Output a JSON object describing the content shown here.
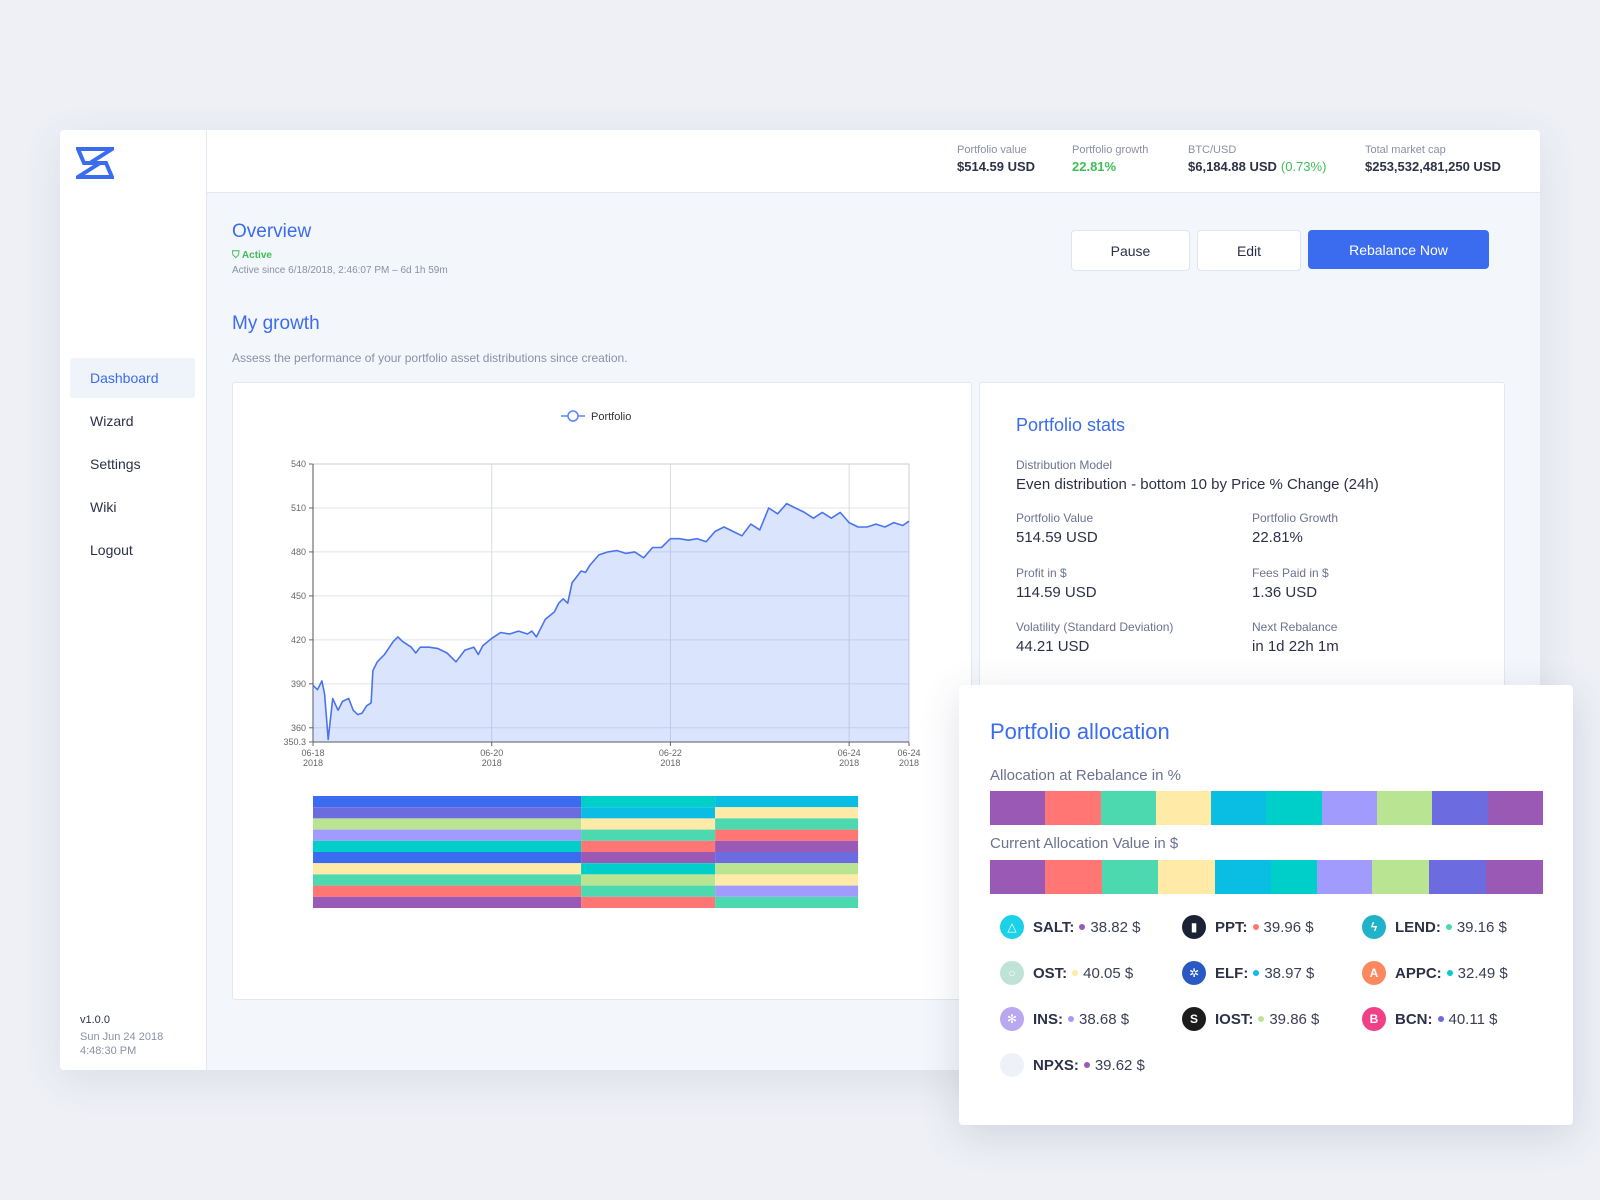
{
  "brand": {
    "accent": "#3b6cf0",
    "positive": "#3fbf55"
  },
  "sidebar": {
    "items": [
      {
        "label": "Dashboard",
        "active": true
      },
      {
        "label": "Wizard"
      },
      {
        "label": "Settings"
      },
      {
        "label": "Wiki"
      },
      {
        "label": "Logout"
      }
    ],
    "version": "v1.0.0",
    "date": "Sun Jun 24 2018",
    "time": "4:48:30 PM"
  },
  "topbar": {
    "portfolio_value_label": "Portfolio value",
    "portfolio_value": "$514.59 USD",
    "portfolio_growth_label": "Portfolio growth",
    "portfolio_growth": "22.81%",
    "btc_label": "BTC/USD",
    "btc_value": "$6,184.88 USD",
    "btc_change": "(0.73%)",
    "market_cap_label": "Total market cap",
    "market_cap": "$253,532,481,250 USD"
  },
  "overview": {
    "title": "Overview",
    "status": "Active",
    "status_sub": "Active since 6/18/2018, 2:46:07 PM – 6d 1h 59m",
    "pause_label": "Pause",
    "edit_label": "Edit",
    "rebalance_label": "Rebalance Now"
  },
  "growth": {
    "title": "My growth",
    "description": "Assess the performance of your portfolio asset distributions since creation."
  },
  "chart_data": {
    "type": "area",
    "title": "",
    "legend": [
      "Portfolio"
    ],
    "xlabel": "",
    "ylabel": "",
    "ylim": [
      350.3,
      540
    ],
    "yticks": [
      "540",
      "510",
      "480",
      "450",
      "420",
      "390",
      "360",
      "350.3"
    ],
    "yticks_values": [
      540,
      510,
      480,
      450,
      420,
      390,
      360,
      350.3
    ],
    "xticks": [
      {
        "x": 0,
        "line1": "06-18",
        "line2": "2018"
      },
      {
        "x": 2,
        "line1": "06-20",
        "line2": "2018"
      },
      {
        "x": 4,
        "line1": "06-22",
        "line2": "2018"
      },
      {
        "x": 6,
        "line1": "06-24",
        "line2": "2018"
      },
      {
        "x": 6.67,
        "line1": "06-24",
        "line2": "2018"
      }
    ],
    "x_range": [
      0,
      6.67
    ],
    "series": [
      {
        "name": "Portfolio",
        "x": [
          0,
          0.05,
          0.1,
          0.13,
          0.17,
          0.22,
          0.28,
          0.33,
          0.4,
          0.45,
          0.5,
          0.55,
          0.6,
          0.65,
          0.67,
          0.72,
          0.8,
          0.9,
          0.95,
          1.0,
          1.1,
          1.15,
          1.2,
          1.3,
          1.4,
          1.5,
          1.6,
          1.7,
          1.8,
          1.85,
          1.9,
          2.0,
          2.1,
          2.2,
          2.3,
          2.4,
          2.45,
          2.5,
          2.6,
          2.7,
          2.75,
          2.8,
          2.85,
          2.9,
          3.0,
          3.05,
          3.1,
          3.2,
          3.3,
          3.4,
          3.5,
          3.6,
          3.7,
          3.8,
          3.9,
          4.0,
          4.1,
          4.2,
          4.3,
          4.4,
          4.5,
          4.6,
          4.7,
          4.8,
          4.9,
          5.0,
          5.1,
          5.2,
          5.3,
          5.4,
          5.5,
          5.6,
          5.7,
          5.8,
          5.9,
          6.0,
          6.1,
          6.2,
          6.3,
          6.4,
          6.5,
          6.6,
          6.67
        ],
        "y": [
          389,
          386,
          392,
          383,
          352,
          380,
          372,
          378,
          380,
          372,
          369,
          370,
          375,
          377,
          399,
          405,
          410,
          419,
          422,
          419,
          415,
          411,
          415,
          415,
          414,
          411,
          405,
          413,
          415,
          410,
          416,
          421,
          425,
          424,
          426,
          424,
          426,
          422,
          434,
          439,
          445,
          448,
          445,
          459,
          467,
          466,
          471,
          478,
          480,
          481,
          479,
          480,
          476,
          483,
          483,
          489,
          489,
          488,
          489,
          487,
          494,
          497,
          494,
          491,
          499,
          495,
          510,
          506,
          513,
          510,
          507,
          503,
          507,
          503,
          507,
          500,
          497,
          497,
          499,
          497,
          500,
          498,
          501
        ]
      }
    ],
    "allocation_strips": {
      "segments_x": [
        0,
        3,
        4.5,
        6.1
      ],
      "columns": [
        [
          "#3b6cf0",
          "#6c6ce0",
          "#b9e592",
          "#a29bfe",
          "#00cec9",
          "#3b6cf0",
          "#ffeaa7",
          "#4dd9b0",
          "#ff7675",
          "#9b59b6"
        ],
        [
          "#00cec9",
          "#0abde3",
          "#ffeaa7",
          "#4dd9b0",
          "#ff7675",
          "#9b59b6",
          "#00cec9",
          "#b9e592",
          "#4dd9b0",
          "#ff7675"
        ],
        [
          "#0abde3",
          "#ffeaa7",
          "#4dd9b0",
          "#ff7675",
          "#9b59b6",
          "#6c6ce0",
          "#b9e592",
          "#ffeaa7",
          "#a29bfe",
          "#4dd9b0"
        ]
      ]
    }
  },
  "stats": {
    "title": "Portfolio stats",
    "model_label": "Distribution Model",
    "model_value": "Even distribution - bottom 10 by Price % Change (24h)",
    "value_label": "Portfolio Value",
    "value": "514.59 USD",
    "growth_label": "Portfolio Growth",
    "growth": "22.81%",
    "profit_label": "Profit in $",
    "profit": "114.59 USD",
    "fees_label": "Fees Paid in $",
    "fees": "1.36 USD",
    "volatility_label": "Volatility (Standard Deviation)",
    "volatility": "44.21 USD",
    "next_label": "Next Rebalance",
    "next": "in 1d 22h 1m"
  },
  "allocation": {
    "title": "Portfolio allocation",
    "rebalance_label": "Allocation at Rebalance in %",
    "current_label": "Current Allocation Value in $",
    "rebalance_segments": [
      {
        "color": "#9b59b6",
        "value": 10
      },
      {
        "color": "#ff7675",
        "value": 10
      },
      {
        "color": "#4dd9b0",
        "value": 10
      },
      {
        "color": "#ffeaa7",
        "value": 10
      },
      {
        "color": "#0abde3",
        "value": 10
      },
      {
        "color": "#00cec9",
        "value": 10
      },
      {
        "color": "#a29bfe",
        "value": 10
      },
      {
        "color": "#b9e592",
        "value": 10
      },
      {
        "color": "#6c6ce0",
        "value": 10
      },
      {
        "color": "#9b59b6",
        "value": 10
      }
    ],
    "current_segments": [
      {
        "color": "#9b59b6",
        "value": 38.82
      },
      {
        "color": "#ff7675",
        "value": 39.96
      },
      {
        "color": "#4dd9b0",
        "value": 39.16
      },
      {
        "color": "#ffeaa7",
        "value": 40.05
      },
      {
        "color": "#0abde3",
        "value": 38.97
      },
      {
        "color": "#00cec9",
        "value": 32.49
      },
      {
        "color": "#a29bfe",
        "value": 38.68
      },
      {
        "color": "#b9e592",
        "value": 39.86
      },
      {
        "color": "#6c6ce0",
        "value": 40.11
      },
      {
        "color": "#9b59b6",
        "value": 39.62
      }
    ],
    "coins": [
      {
        "name": "SALT:",
        "value": "38.82 $",
        "dot": "#9b59b6",
        "icon": "salt-icon",
        "icon_color": "#1bd1e8",
        "glyph": "△"
      },
      {
        "name": "PPT:",
        "value": "39.96 $",
        "dot": "#ff7675",
        "icon": "ppt-icon",
        "icon_color": "#1c2236",
        "glyph": "▮"
      },
      {
        "name": "LEND:",
        "value": "39.16 $",
        "dot": "#4dd9b0",
        "icon": "lend-icon",
        "icon_color": "#20b2c8",
        "glyph": "ϟ"
      },
      {
        "name": "OST:",
        "value": "40.05 $",
        "dot": "#ffeaa7",
        "icon": "ost-icon",
        "icon_color": "#bfe3d6",
        "glyph": "○"
      },
      {
        "name": "ELF:",
        "value": "38.97 $",
        "dot": "#0abde3",
        "icon": "elf-icon",
        "icon_color": "#2b59c3",
        "glyph": "✲"
      },
      {
        "name": "APPC:",
        "value": "32.49 $",
        "dot": "#00cec9",
        "icon": "appc-icon",
        "icon_color": "#fd875e",
        "glyph": "A"
      },
      {
        "name": "INS:",
        "value": "38.68 $",
        "dot": "#a29bfe",
        "icon": "ins-icon",
        "icon_color": "#b9a8f0",
        "glyph": "✻"
      },
      {
        "name": "IOST:",
        "value": "39.86 $",
        "dot": "#b9e592",
        "icon": "iost-icon",
        "icon_color": "#1c1c1c",
        "glyph": "S"
      },
      {
        "name": "BCN:",
        "value": "40.11 $",
        "dot": "#6c6ce0",
        "icon": "bcn-icon",
        "icon_color": "#f04086",
        "glyph": "B"
      },
      {
        "name": "NPXS:",
        "value": "39.62 $",
        "dot": "#9b59b6",
        "icon": "npxs-icon",
        "icon_color": "#eef2f8",
        "glyph": ""
      }
    ]
  }
}
